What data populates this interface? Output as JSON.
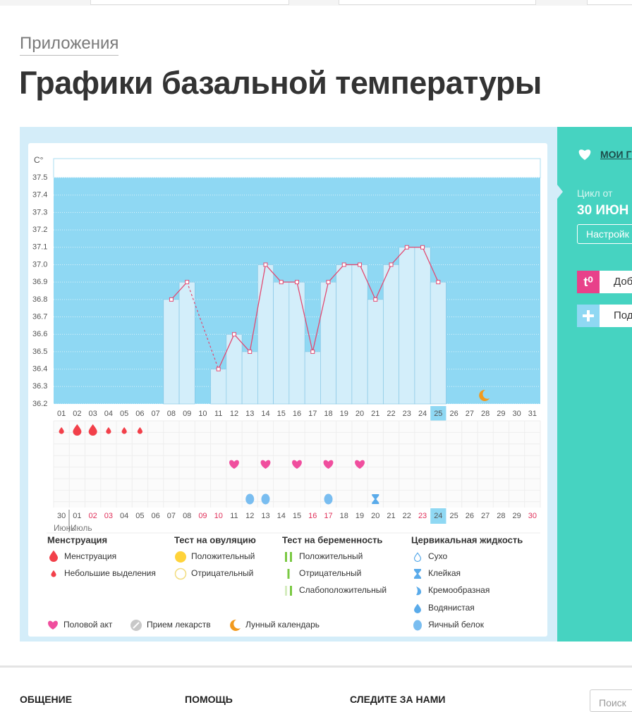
{
  "header": {
    "breadcrumb": "Приложения",
    "title": "Графики базальной температуры"
  },
  "chart_data": {
    "type": "bar-line",
    "y_label": "C°",
    "categories": [
      "01",
      "02",
      "03",
      "04",
      "05",
      "06",
      "07",
      "08",
      "09",
      "10",
      "11",
      "12",
      "13",
      "14",
      "15",
      "16",
      "17",
      "18",
      "19",
      "20",
      "21",
      "22",
      "23",
      "24",
      "25",
      "26",
      "27",
      "28",
      "29",
      "30",
      "31"
    ],
    "values": [
      null,
      null,
      null,
      null,
      null,
      null,
      null,
      36.8,
      36.9,
      null,
      36.4,
      36.6,
      36.5,
      37.0,
      36.9,
      36.9,
      36.5,
      36.9,
      37.0,
      37.0,
      36.8,
      37.0,
      37.1,
      37.1,
      36.9,
      null,
      null,
      null,
      null,
      null,
      null
    ],
    "bar_color": "#d3eefa",
    "line_color": "#e24a72",
    "plot_color": "#8fd8f3",
    "bridge_gaps": true,
    "ylim": [
      36.2,
      37.5
    ],
    "yticks": [
      36.2,
      36.3,
      36.4,
      36.5,
      36.6,
      36.7,
      36.8,
      36.9,
      {
        "value": 37,
        "label": "37.0"
      },
      37.1,
      37.2,
      37.3,
      37.4,
      37.5
    ],
    "grid": true,
    "highlight_day": "25",
    "moon_day": "28",
    "dates": [
      "30",
      "01",
      "02",
      "03",
      "04",
      "05",
      "06",
      "07",
      "08",
      "09",
      "10",
      "11",
      "12",
      "13",
      "14",
      "15",
      "16",
      "17",
      "18",
      "19",
      "20",
      "21",
      "22",
      "23",
      "24",
      "25",
      "26",
      "27",
      "28",
      "29",
      "30"
    ],
    "weekend": [
      false,
      false,
      true,
      true,
      false,
      false,
      false,
      false,
      false,
      true,
      true,
      false,
      false,
      false,
      false,
      false,
      true,
      true,
      false,
      false,
      false,
      false,
      false,
      true,
      false,
      false,
      false,
      false,
      false,
      false,
      true
    ],
    "highlight_date_index": 24,
    "months": [
      "Июнь",
      "Июль"
    ],
    "events": {
      "menstruation": [
        {
          "day": "01",
          "icon": "drop-small"
        },
        {
          "day": "02",
          "icon": "drop-big"
        },
        {
          "day": "03",
          "icon": "drop-big"
        },
        {
          "day": "04",
          "icon": "drop-small"
        },
        {
          "day": "05",
          "icon": "drop-small"
        },
        {
          "day": "06",
          "icon": "drop-small"
        }
      ],
      "intercourse": [
        {
          "day": "12",
          "icon": "heart"
        },
        {
          "day": "14",
          "icon": "heart"
        },
        {
          "day": "16",
          "icon": "heart"
        },
        {
          "day": "18",
          "icon": "heart"
        },
        {
          "day": "20",
          "icon": "heart"
        }
      ],
      "cervical": [
        {
          "day": "13",
          "icon": "egg"
        },
        {
          "day": "14",
          "icon": "egg"
        },
        {
          "day": "18",
          "icon": "egg"
        },
        {
          "day": "21",
          "icon": "sticky"
        }
      ]
    },
    "legend": {
      "groups": [
        {
          "title": "Менструация",
          "items": [
            {
              "label": "Менструация",
              "icon": "drop-big"
            },
            {
              "label": "Небольшие выделения",
              "icon": "drop-small"
            }
          ]
        },
        {
          "title": "Тест на овуляцию",
          "items": [
            {
              "label": "Положительный",
              "icon": "circle-yellow"
            },
            {
              "label": "Отрицательный",
              "icon": "circle-empty"
            }
          ]
        },
        {
          "title": "Тест на беременность",
          "items": [
            {
              "label": "Положительный",
              "icon": "bars-2"
            },
            {
              "label": "Отрицательный",
              "icon": "bar-1"
            },
            {
              "label": "Слабоположительный",
              "icon": "bars-light"
            }
          ]
        },
        {
          "title": "Цервикальная жидкость",
          "items": [
            {
              "label": "Сухо",
              "icon": "drop-outline"
            },
            {
              "label": "Клейкая",
              "icon": "sticky"
            },
            {
              "label": "Кремообразная",
              "icon": "creamy"
            },
            {
              "label": "Водянистая",
              "icon": "watery"
            },
            {
              "label": "Яичный белок",
              "icon": "egg"
            }
          ]
        }
      ],
      "extra": [
        {
          "label": "Половой акт",
          "icon": "heart"
        },
        {
          "label": "Прием лекарств",
          "icon": "pill"
        },
        {
          "label": "Лунный календарь",
          "icon": "moon"
        }
      ]
    }
  },
  "sidebar": {
    "my_charts": "МОИ Г",
    "cycle_label": "Цикл от",
    "cycle_date": "30 ИЮН",
    "settings": "Настройк",
    "temp_icon": "t⁰",
    "add_temp": "Доб",
    "add_other": "Под"
  },
  "footer": {
    "columns": [
      "ОБЩЕНИЕ",
      "ПОМОЩЬ",
      "СЛЕДИТЕ ЗА НАМИ"
    ],
    "search_placeholder": "Поиск"
  }
}
